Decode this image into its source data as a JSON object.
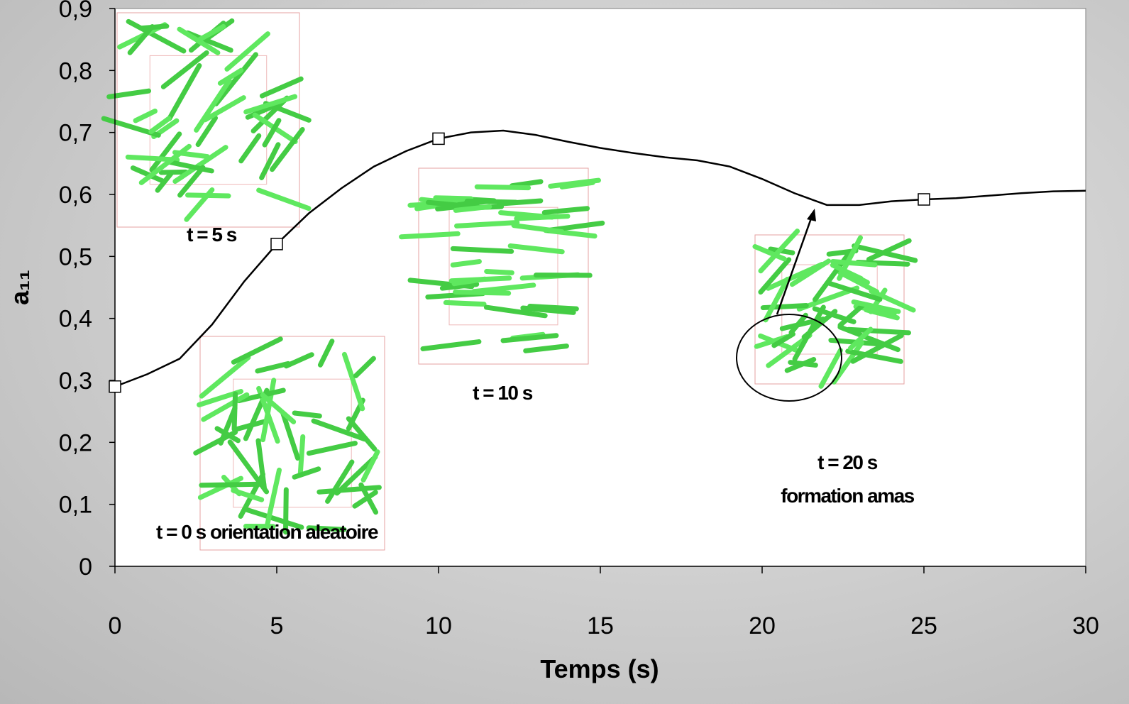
{
  "chart_data": {
    "type": "line",
    "x_label": "Temps (s)",
    "y_label": "a₁₁",
    "x": [
      0,
      1,
      2,
      3,
      4,
      5,
      6,
      7,
      8,
      9,
      10,
      11,
      12,
      13,
      14,
      15,
      16,
      17,
      18,
      19,
      20,
      21,
      22,
      23,
      24,
      25,
      26,
      27,
      28,
      29,
      30
    ],
    "values": [
      0.29,
      0.31,
      0.335,
      0.39,
      0.46,
      0.52,
      0.57,
      0.61,
      0.645,
      0.67,
      0.69,
      0.7,
      0.703,
      0.696,
      0.685,
      0.675,
      0.667,
      0.66,
      0.655,
      0.645,
      0.625,
      0.602,
      0.583,
      0.583,
      0.589,
      0.592,
      0.594,
      0.598,
      0.602,
      0.605,
      0.606
    ],
    "color": "#000000",
    "markers": {
      "x": [
        0,
        5,
        10,
        25
      ],
      "values": [
        0.29,
        0.52,
        0.69,
        0.592
      ]
    },
    "xlim": [
      0,
      30
    ],
    "xticks": [
      0,
      5,
      10,
      15,
      20,
      25,
      30
    ],
    "ylim": [
      0,
      0.9
    ],
    "yticks": [
      0,
      {
        "value": 0.1,
        "label": "0,1"
      },
      {
        "value": 0.2,
        "label": "0,2"
      },
      {
        "value": 0.3,
        "label": "0,3"
      },
      {
        "value": 0.4,
        "label": "0,4"
      },
      {
        "value": 0.5,
        "label": "0,5"
      },
      {
        "value": 0.6,
        "label": "0,6"
      },
      {
        "value": 0.7,
        "label": "0,7"
      },
      {
        "value": 0.8,
        "label": "0,8"
      },
      {
        "value": 0.9,
        "label": "0,9"
      }
    ],
    "annotations": [
      "t = 5 s",
      "t = 0 s orientation aleatoire",
      "t = 10 s",
      "t = 20 s",
      "formation amas"
    ]
  }
}
